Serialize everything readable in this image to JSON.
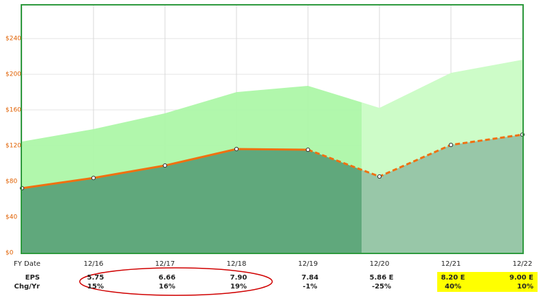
{
  "chart_data": {
    "type": "area-line",
    "categories": [
      null,
      "12/16",
      "12/17",
      "12/18",
      "12/19",
      "12/20",
      "12/21",
      "12/22"
    ],
    "series": [
      {
        "color": "#adf7a8",
        "values": [
          124.6,
          138.5,
          156.2,
          180,
          187,
          162.3,
          201.5,
          216.2
        ]
      },
      {
        "color": "#f07010",
        "values": [
          72.3,
          83.8,
          97.7,
          116.2,
          115.4,
          85.4,
          120.8,
          132.3
        ]
      }
    ],
    "dashed_after": 4,
    "ylim": [
      0,
      277
    ],
    "yticks": [
      {
        "value": 0,
        "label": "$0"
      },
      {
        "value": 40,
        "label": "$40"
      },
      {
        "value": 80,
        "label": "$80"
      },
      {
        "value": 120,
        "label": "$120"
      },
      {
        "value": 160,
        "label": "$160"
      },
      {
        "value": 200,
        "label": "$200"
      },
      {
        "value": 240,
        "label": "$240"
      }
    ],
    "grid": true,
    "x_label": "FY Date",
    "rows": [
      {
        "label": "EPS",
        "cells": [
          null,
          "5.75",
          "6.66",
          "7.90",
          "7.84",
          "5.86 E",
          "8.20 E",
          "9.00 E"
        ]
      },
      {
        "label": "Chg/Yr",
        "cells": [
          null,
          "15%",
          "16%",
          "19%",
          "-1%",
          "-25%",
          "40%",
          "10%"
        ]
      }
    ]
  }
}
